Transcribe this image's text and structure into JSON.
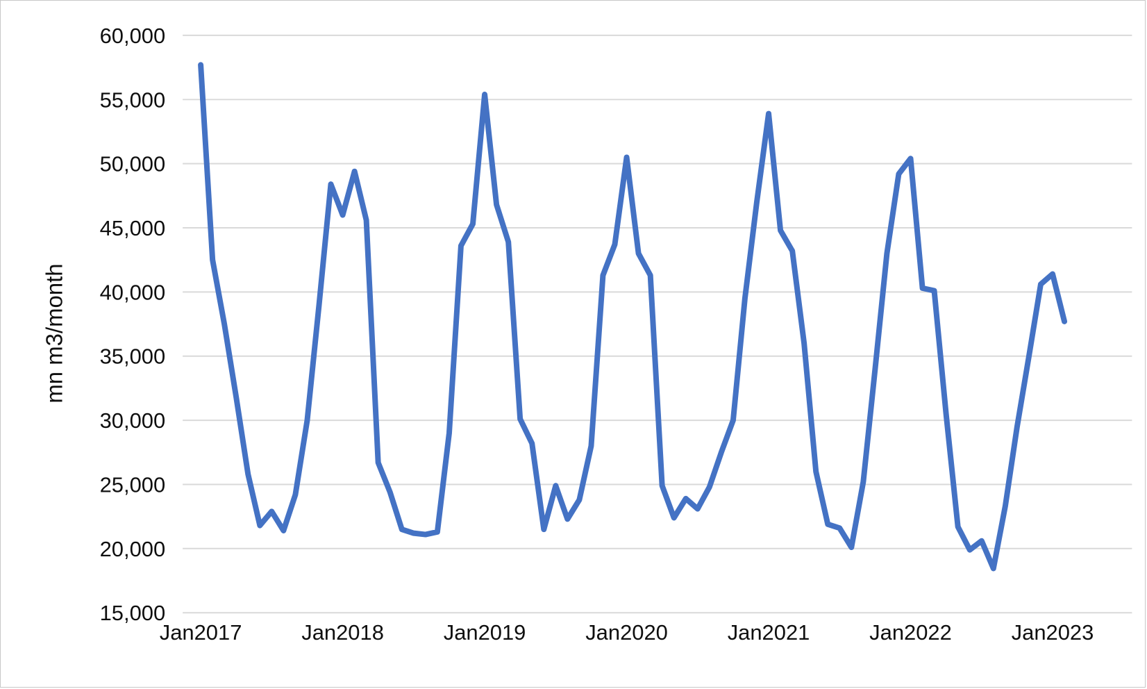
{
  "chart": {
    "background": "#ffffff",
    "frame_border_color": "#c8c8c8"
  },
  "chart_data": {
    "type": "line",
    "title": "",
    "xlabel": "",
    "ylabel": "mn m3/month",
    "legend": "none",
    "grid": "horizontal",
    "ylim": [
      15000,
      60000
    ],
    "ytick_step": 5000,
    "ytick_labels": [
      "60,000",
      "55,000",
      "50,000",
      "45,000",
      "40,000",
      "35,000",
      "30,000",
      "25,000",
      "20,000",
      "15,000"
    ],
    "ytick_values": [
      60000,
      55000,
      50000,
      45000,
      40000,
      35000,
      30000,
      25000,
      20000,
      15000
    ],
    "xtick_labels": [
      "Jan2017",
      "Jan2018",
      "Jan2019",
      "Jan2020",
      "Jan2021",
      "Jan2022",
      "Jan2023"
    ],
    "xtick_indices": [
      0,
      12,
      24,
      36,
      48,
      60,
      72
    ],
    "categories": [
      "Jan2017",
      "Feb2017",
      "Mar2017",
      "Apr2017",
      "May2017",
      "Jun2017",
      "Jul2017",
      "Aug2017",
      "Sep2017",
      "Oct2017",
      "Nov2017",
      "Dec2017",
      "Jan2018",
      "Feb2018",
      "Mar2018",
      "Apr2018",
      "May2018",
      "Jun2018",
      "Jul2018",
      "Aug2018",
      "Sep2018",
      "Oct2018",
      "Nov2018",
      "Dec2018",
      "Jan2019",
      "Feb2019",
      "Mar2019",
      "Apr2019",
      "May2019",
      "Jun2019",
      "Jul2019",
      "Aug2019",
      "Sep2019",
      "Oct2019",
      "Nov2019",
      "Dec2019",
      "Jan2020",
      "Feb2020",
      "Mar2020",
      "Apr2020",
      "May2020",
      "Jun2020",
      "Jul2020",
      "Aug2020",
      "Sep2020",
      "Oct2020",
      "Nov2020",
      "Dec2020",
      "Jan2021",
      "Feb2021",
      "Mar2021",
      "Apr2021",
      "May2021",
      "Jun2021",
      "Jul2021",
      "Aug2021",
      "Sep2021",
      "Oct2021",
      "Nov2021",
      "Dec2021",
      "Jan2022",
      "Feb2022",
      "Mar2022",
      "Apr2022",
      "May2022",
      "Jun2022",
      "Jul2022",
      "Aug2022",
      "Sep2022",
      "Oct2022",
      "Nov2022",
      "Dec2022",
      "Jan2023",
      "Feb2023"
    ],
    "values": [
      57700,
      42500,
      37500,
      31800,
      25800,
      21800,
      22900,
      21400,
      24200,
      30000,
      39000,
      48400,
      46000,
      49400,
      45600,
      26700,
      24400,
      21500,
      21200,
      21100,
      21300,
      29000,
      43600,
      45300,
      55400,
      46800,
      43900,
      30100,
      28200,
      21500,
      24900,
      22300,
      23800,
      28000,
      41300,
      43700,
      50500,
      43000,
      41300,
      24900,
      22400,
      23900,
      23100,
      24800,
      27500,
      30000,
      39500,
      47000,
      53900,
      44800,
      43200,
      36000,
      26000,
      21900,
      21600,
      20100,
      25200,
      34000,
      43000,
      49200,
      50400,
      40300,
      40100,
      30500,
      21700,
      19900,
      20600,
      18450,
      23300,
      29500,
      35000,
      40600,
      41400,
      37700
    ],
    "line_color": "#4472C4",
    "line_width": 8,
    "gridline_color": "#d9d9d9",
    "text_color": "#0f0f0f",
    "ytick_font_size": 31,
    "xtick_font_size": 31,
    "ylabel_font_size": 33
  }
}
